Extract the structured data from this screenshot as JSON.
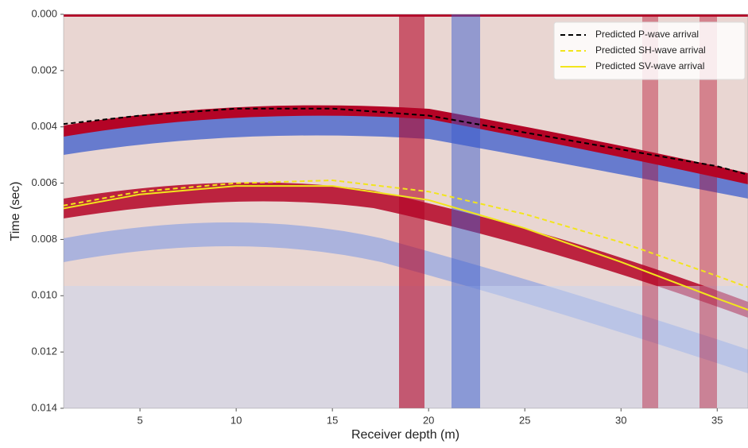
{
  "chart_data": {
    "type": "line",
    "x_label": "Receiver depth (m)",
    "y_label": "Time (sec)",
    "x": [
      1,
      5,
      10,
      15,
      20,
      25,
      30,
      35,
      36.6
    ],
    "series": [
      {
        "name": "Predicted P-wave arrival",
        "color": "#000000",
        "linestyle": "dashed",
        "values": [
          0.0039,
          0.0036,
          0.00335,
          0.00335,
          0.0036,
          0.0042,
          0.0048,
          0.0054,
          0.0057
        ]
      },
      {
        "name": "Predicted SH-wave arrival",
        "color": "#f2e51c",
        "linestyle": "dashed",
        "values": [
          0.0068,
          0.0063,
          0.006,
          0.0059,
          0.0063,
          0.0071,
          0.0081,
          0.0093,
          0.0097
        ]
      },
      {
        "name": "Predicted SV-wave arrival",
        "color": "#f2e51c",
        "linestyle": "solid",
        "values": [
          0.0069,
          0.0064,
          0.0061,
          0.0061,
          0.0066,
          0.0076,
          0.0088,
          0.0101,
          0.0105
        ]
      }
    ],
    "xlim": [
      1.03,
      36.6
    ],
    "xticks": [
      5,
      10,
      15,
      20,
      25,
      30,
      35
    ],
    "ylim": [
      0.014,
      0
    ],
    "yticks": [
      {
        "value": 0,
        "label": "0.000"
      },
      0.002,
      0.004,
      0.006,
      0.008,
      {
        "value": 0.01,
        "label": "0.010"
      },
      0.012,
      0.014
    ],
    "legend": "upper right"
  }
}
